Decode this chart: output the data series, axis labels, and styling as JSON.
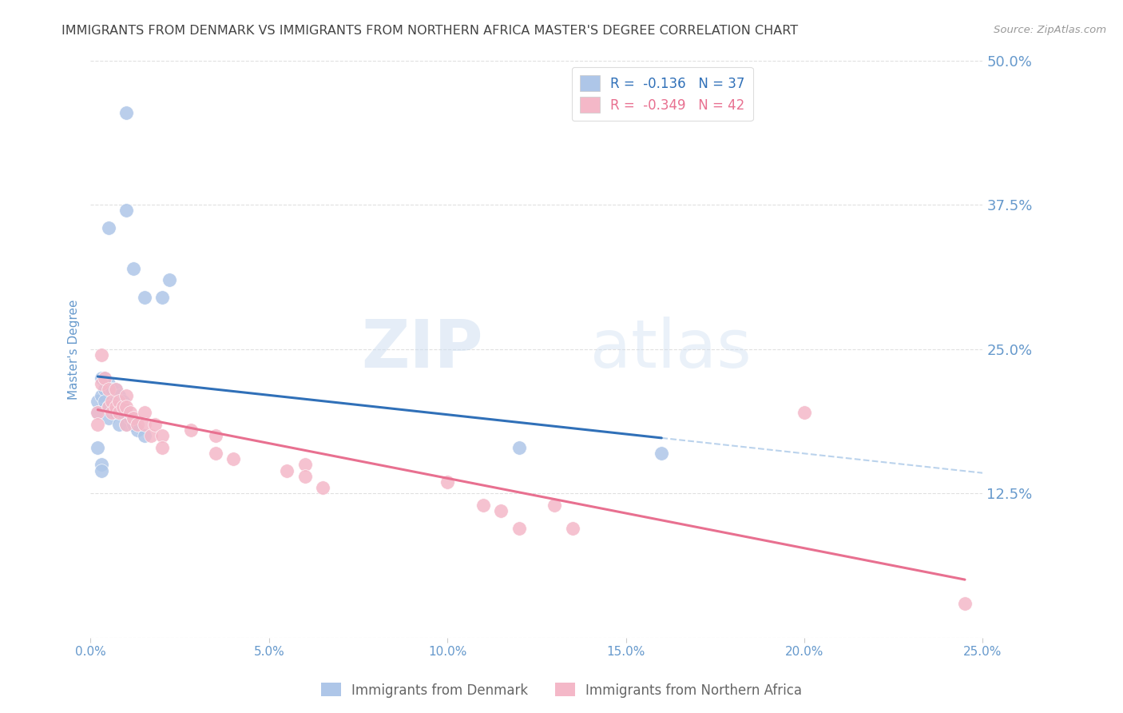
{
  "title": "IMMIGRANTS FROM DENMARK VS IMMIGRANTS FROM NORTHERN AFRICA MASTER'S DEGREE CORRELATION CHART",
  "source": "Source: ZipAtlas.com",
  "ylabel": "Master's Degree",
  "xlim": [
    0.0,
    0.25
  ],
  "ylim": [
    0.0,
    0.5
  ],
  "xtick_vals": [
    0.0,
    0.05,
    0.1,
    0.15,
    0.2,
    0.25
  ],
  "xtick_labels": [
    "0.0%",
    "5.0%",
    "10.0%",
    "15.0%",
    "20.0%",
    "25.0%"
  ],
  "ytick_vals": [
    0.0,
    0.125,
    0.25,
    0.375,
    0.5
  ],
  "ytick_labels": [
    "",
    "12.5%",
    "25.0%",
    "37.5%",
    "50.0%"
  ],
  "legend_entries": [
    {
      "label": "R =  -0.136   N = 37",
      "color": "#aec6e8"
    },
    {
      "label": "R =  -0.349   N = 42",
      "color": "#f4b8c8"
    }
  ],
  "bottom_legend": [
    {
      "label": "Immigrants from Denmark",
      "color": "#aec6e8"
    },
    {
      "label": "Immigrants from Northern Africa",
      "color": "#f4b8c8"
    }
  ],
  "denmark_x": [
    0.01,
    0.005,
    0.01,
    0.012,
    0.015,
    0.02,
    0.022,
    0.002,
    0.002,
    0.003,
    0.003,
    0.004,
    0.004,
    0.004,
    0.005,
    0.005,
    0.005,
    0.006,
    0.007,
    0.007,
    0.007,
    0.008,
    0.008,
    0.008,
    0.009,
    0.009,
    0.01,
    0.01,
    0.011,
    0.012,
    0.013,
    0.015,
    0.002,
    0.003,
    0.003,
    0.12,
    0.16
  ],
  "denmark_y": [
    0.455,
    0.355,
    0.37,
    0.32,
    0.295,
    0.295,
    0.31,
    0.205,
    0.195,
    0.225,
    0.21,
    0.225,
    0.215,
    0.205,
    0.22,
    0.2,
    0.19,
    0.215,
    0.215,
    0.205,
    0.195,
    0.21,
    0.2,
    0.185,
    0.205,
    0.195,
    0.195,
    0.185,
    0.19,
    0.185,
    0.18,
    0.175,
    0.165,
    0.15,
    0.145,
    0.165,
    0.16
  ],
  "africa_x": [
    0.002,
    0.002,
    0.003,
    0.003,
    0.004,
    0.005,
    0.005,
    0.006,
    0.006,
    0.007,
    0.007,
    0.008,
    0.008,
    0.009,
    0.01,
    0.01,
    0.01,
    0.011,
    0.012,
    0.013,
    0.015,
    0.015,
    0.017,
    0.018,
    0.02,
    0.02,
    0.028,
    0.035,
    0.035,
    0.04,
    0.055,
    0.06,
    0.06,
    0.065,
    0.1,
    0.11,
    0.115,
    0.12,
    0.13,
    0.135,
    0.2,
    0.245
  ],
  "africa_y": [
    0.195,
    0.185,
    0.245,
    0.22,
    0.225,
    0.215,
    0.2,
    0.205,
    0.195,
    0.215,
    0.2,
    0.205,
    0.195,
    0.2,
    0.21,
    0.2,
    0.185,
    0.195,
    0.19,
    0.185,
    0.195,
    0.185,
    0.175,
    0.185,
    0.175,
    0.165,
    0.18,
    0.175,
    0.16,
    0.155,
    0.145,
    0.15,
    0.14,
    0.13,
    0.135,
    0.115,
    0.11,
    0.095,
    0.115,
    0.095,
    0.195,
    0.03
  ],
  "denmark_color": "#aec6e8",
  "africa_color": "#f4b8c8",
  "denmark_line_color": "#3070b8",
  "africa_line_color": "#e87090",
  "watermark_zip": "ZIP",
  "watermark_atlas": "atlas",
  "background_color": "#ffffff",
  "grid_color": "#cccccc",
  "title_color": "#444444",
  "axis_label_color": "#6699cc",
  "tick_label_color": "#6699cc",
  "source_color": "#999999"
}
